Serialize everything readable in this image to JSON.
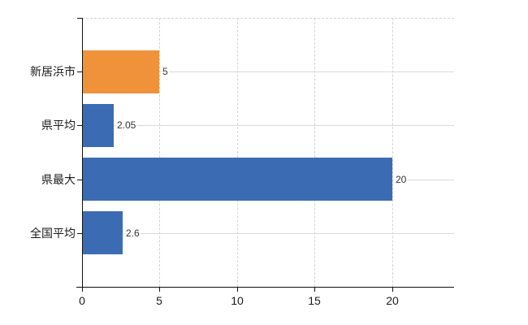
{
  "chart_data": {
    "type": "bar",
    "orientation": "horizontal",
    "title": "",
    "xlabel": "",
    "ylabel": "",
    "categories": [
      "新居浜市",
      "県平均",
      "県最大",
      "全国平均"
    ],
    "values": [
      5,
      2.05,
      20,
      2.6
    ],
    "value_labels": [
      "5",
      "2.05",
      "20",
      "2.6"
    ],
    "bar_colors": [
      "#f0923a",
      "#3b6cb3",
      "#3b6cb3",
      "#3b6cb3"
    ],
    "x_ticks": [
      0,
      5,
      10,
      15,
      20
    ],
    "xlim": [
      0,
      24
    ],
    "grid": {
      "vertical_style": "dashed",
      "horizontal_style": "solid",
      "top_edge_style": "dashed",
      "color": "#d4d4d4"
    },
    "axis_color": "#111111",
    "background": "#ffffff",
    "legend": null
  }
}
